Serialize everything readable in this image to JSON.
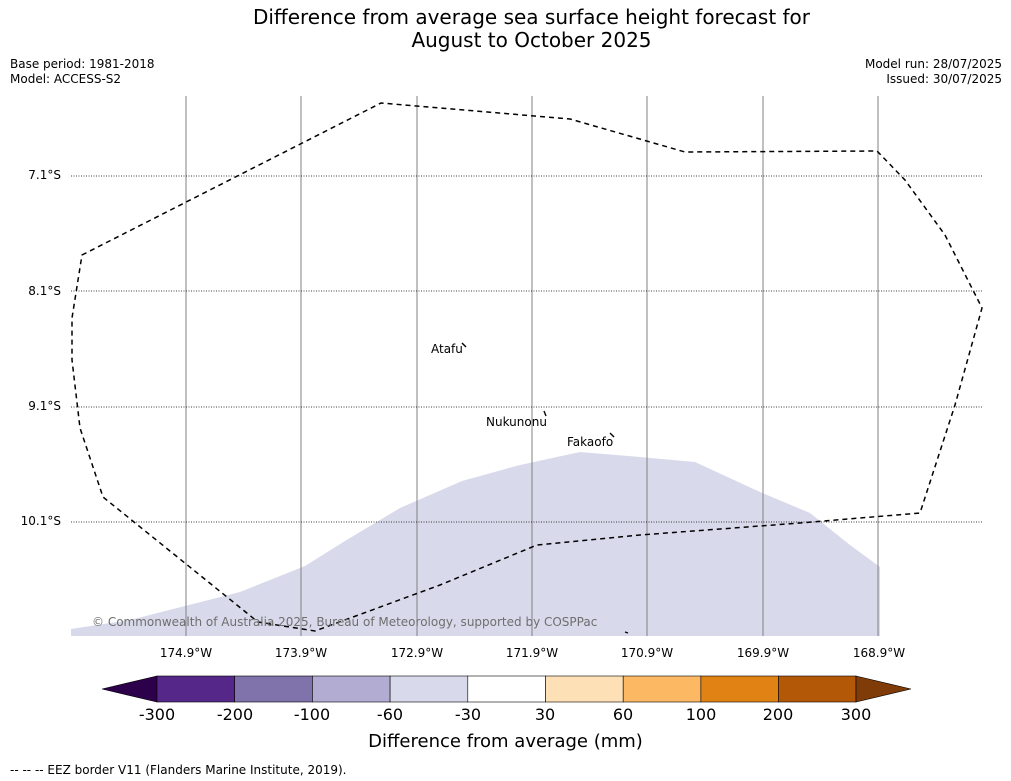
{
  "title_line1": "Difference from average sea surface height forecast for",
  "title_line2": "August to October 2025",
  "base_period": "Base period: 1981-2018",
  "model": "Model: ACCESS-S2",
  "model_run": "Model run: 28/07/2025",
  "issued": "Issued: 30/07/2025",
  "lat_labels": [
    "7.1°S",
    "8.1°S",
    "9.1°S",
    "10.1°S"
  ],
  "lon_labels": [
    "174.9°W",
    "173.9°W",
    "172.9°W",
    "171.9°W",
    "170.9°W",
    "169.9°W",
    "168.9°W"
  ],
  "places": {
    "atafu": "Atafu",
    "nukunonu": "Nukunonu",
    "fakaofo": "Fakaofo"
  },
  "copyright": "© Commonwealth of Australia 2025, Bureau of Meteorology, supported by COSPPac",
  "colorbar": {
    "label": "Difference from average (mm)",
    "ticks": [
      "-300",
      "-200",
      "-100",
      "-60",
      "-30",
      "30",
      "60",
      "100",
      "200",
      "300"
    ],
    "colors": [
      "#2d004b",
      "#542788",
      "#8073ac",
      "#b2abd2",
      "#d8daeb",
      "#ffffff",
      "#fee0b6",
      "#fdb863",
      "#e08214",
      "#b35806",
      "#7f3b08"
    ]
  },
  "shading_color": "#d8daeb",
  "footnote": "--  --  -- EEZ border V11 (Flanders Marine Institute, 2019)."
}
